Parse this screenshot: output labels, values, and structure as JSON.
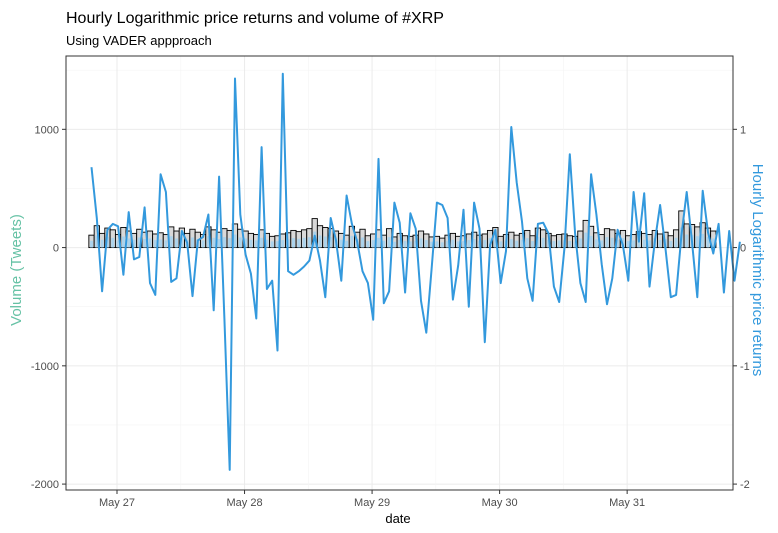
{
  "chart_data": {
    "type": "bar+line",
    "title": "Hourly Logarithmic price returns and volume of #XRP",
    "subtitle": "Using VADER appproach",
    "xlabel": "date",
    "ylabel_left": "Volume (Tweets)",
    "ylabel_right": "Hourly Logarithmic price returns",
    "x_ticks": [
      "May 27",
      "May 28",
      "May 29",
      "May 30",
      "May 31"
    ],
    "y_left_ticks": [
      "-2000",
      "-1000",
      "0",
      "1000"
    ],
    "y_left_values": [
      -2000,
      -1000,
      0,
      1000
    ],
    "y_right_ticks": [
      "-2",
      "-1",
      "0",
      "1"
    ],
    "y_right_values": [
      -2,
      -1,
      0,
      1
    ],
    "ylim_left": [
      -2050,
      1620
    ],
    "ylim_right": [
      -2.05,
      1.62
    ],
    "x_range_days": [
      26.6,
      31.83
    ],
    "x_tick_days": [
      27,
      28,
      29,
      30,
      31
    ],
    "grid": true,
    "colors": {
      "volume_bar_fill": "#d9d9d9",
      "volume_bar_stroke": "#000000",
      "volume_overlay_fill": "#9fd1f0",
      "returns_line": "#3399dd",
      "left_axis_title": "#66c2a5",
      "right_axis_title": "#3399dd"
    },
    "volume_series": {
      "start_day": 26.8,
      "step_day": 0.04167,
      "values": [
        105,
        185,
        120,
        165,
        150,
        110,
        170,
        140,
        120,
        155,
        130,
        140,
        115,
        125,
        110,
        175,
        140,
        165,
        120,
        155,
        130,
        110,
        175,
        150,
        130,
        160,
        145,
        200,
        155,
        140,
        120,
        110,
        150,
        120,
        95,
        100,
        115,
        125,
        145,
        135,
        150,
        160,
        245,
        185,
        170,
        160,
        140,
        120,
        105,
        180,
        130,
        155,
        100,
        115,
        150,
        105,
        160,
        90,
        120,
        100,
        95,
        105,
        140,
        115,
        90,
        95,
        80,
        105,
        120,
        95,
        100,
        115,
        130,
        105,
        115,
        145,
        170,
        95,
        110,
        130,
        105,
        120,
        145,
        100,
        165,
        150,
        120,
        100,
        110,
        115,
        100,
        95,
        140,
        230,
        180,
        125,
        110,
        160,
        150,
        120,
        145,
        100,
        110,
        135,
        120,
        110,
        145,
        115,
        130,
        100,
        150,
        310,
        200,
        195,
        175,
        210,
        165,
        140
      ]
    },
    "returns_series": {
      "start_day": 26.8,
      "step_day": 0.04167,
      "values": [
        0.68,
        0.25,
        -0.37,
        0.15,
        0.2,
        0.18,
        -0.23,
        0.3,
        -0.1,
        -0.08,
        0.34,
        -0.3,
        -0.4,
        0.62,
        0.47,
        -0.29,
        -0.26,
        0.14,
        0.04,
        -0.41,
        0.06,
        0.09,
        0.28,
        -0.53,
        0.6,
        -0.6,
        -1.88,
        1.43,
        0.28,
        -0.06,
        -0.22,
        -0.6,
        0.85,
        -0.35,
        -0.28,
        -0.87,
        1.47,
        -0.2,
        -0.23,
        -0.2,
        -0.16,
        -0.11,
        0.1,
        -0.11,
        -0.42,
        0.25,
        0.06,
        -0.28,
        0.44,
        0.2,
        0.05,
        -0.2,
        -0.3,
        -0.61,
        0.75,
        -0.47,
        -0.37,
        0.38,
        0.21,
        -0.38,
        0.29,
        0.16,
        -0.45,
        -0.72,
        -0.18,
        0.38,
        0.36,
        0.25,
        -0.44,
        -0.15,
        0.32,
        -0.5,
        0.38,
        0.16,
        -0.8,
        0.02,
        0.15,
        -0.3,
        -0.03,
        1.02,
        0.55,
        0.22,
        -0.26,
        -0.45,
        0.2,
        0.21,
        0.12,
        -0.33,
        -0.46,
        0.0,
        0.79,
        0.12,
        -0.3,
        -0.46,
        0.62,
        0.28,
        -0.14,
        -0.48,
        -0.26,
        0.15,
        0.02,
        -0.28,
        0.47,
        0.05,
        0.46,
        -0.33,
        0.05,
        0.36,
        -0.01,
        -0.42,
        -0.4,
        0.1,
        0.47,
        0.05,
        -0.42,
        0.48,
        0.13,
        -0.05,
        0.2,
        -0.38,
        0.14,
        -0.28,
        0.05
      ]
    }
  }
}
